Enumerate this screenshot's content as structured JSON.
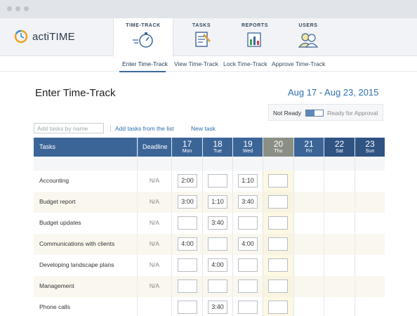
{
  "app": {
    "name": "actiTIME"
  },
  "nav": {
    "tabs": [
      {
        "label": "TIME-TRACK",
        "icon": "stopwatch-icon"
      },
      {
        "label": "TASKS",
        "icon": "checklist-icon"
      },
      {
        "label": "REPORTS",
        "icon": "bar-chart-icon"
      },
      {
        "label": "USERS",
        "icon": "users-icon"
      }
    ],
    "active": "TIME-TRACK"
  },
  "subnav": {
    "items": [
      "Enter Time-Track",
      "View Time-Track",
      "Lock Time-Track",
      "Approve Time-Track"
    ],
    "active": "Enter Time-Track"
  },
  "page": {
    "title": "Enter Time-Track",
    "date_range": "Aug 17 - Aug 23, 2015",
    "not_ready": "Not Ready",
    "toggle_text": "Off",
    "ready_for_approval": "Ready for Approval",
    "add_tasks_placeholder": "Add tasks by name",
    "add_from_list": "Add tasks from the list",
    "new_task": "New task"
  },
  "table": {
    "task_header": "Tasks",
    "deadline_header": "Deadline",
    "days": [
      {
        "num": "17",
        "wd": "Mon"
      },
      {
        "num": "18",
        "wd": "Tue"
      },
      {
        "num": "19",
        "wd": "Wed"
      },
      {
        "num": "20",
        "wd": "Thu"
      },
      {
        "num": "21",
        "wd": "Fri"
      },
      {
        "num": "22",
        "wd": "Sat"
      },
      {
        "num": "23",
        "wd": "Sun"
      }
    ],
    "rows": [
      {
        "task": "Accounting",
        "deadline": "N/A",
        "mon": "2:00",
        "tue": "",
        "wed": "1:10",
        "thu": ""
      },
      {
        "task": "Budget report",
        "deadline": "N/A",
        "mon": "3:00",
        "tue": "1:10",
        "wed": "3:40",
        "thu": ""
      },
      {
        "task": "Budget updates",
        "deadline": "N/A",
        "mon": "",
        "tue": "3:40",
        "wed": "",
        "thu": ""
      },
      {
        "task": "Communications with clients",
        "deadline": "N/A",
        "mon": "4:00",
        "tue": "",
        "wed": "4:00",
        "thu": ""
      },
      {
        "task": "Developing landscape plans",
        "deadline": "N/A",
        "mon": "",
        "tue": "4:00",
        "wed": "",
        "thu": ""
      },
      {
        "task": "Management",
        "deadline": "N/A",
        "mon": "",
        "tue": "",
        "wed": "",
        "thu": ""
      },
      {
        "task": "Phone calls",
        "deadline": "",
        "mon": "",
        "tue": "3:40",
        "wed": "",
        "thu": ""
      }
    ]
  },
  "colors": {
    "accent": "#3b6597",
    "link": "#2e6fb0",
    "today": "#fdf8e3",
    "row_alt": "#fbf9f1"
  }
}
